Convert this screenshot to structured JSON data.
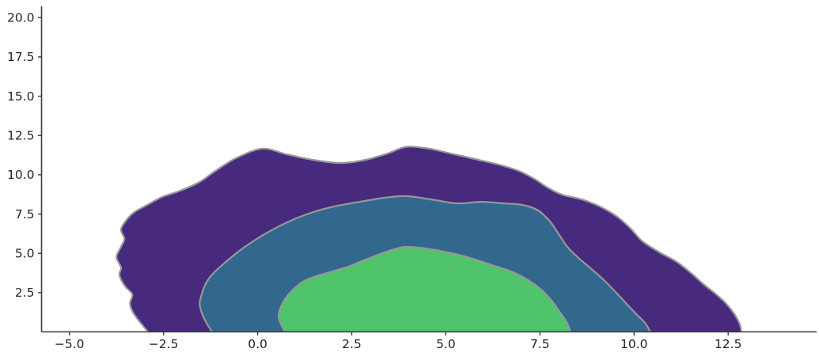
{
  "figure": {
    "background": "#ffffff",
    "spine_color": "#3c3c3c",
    "tick_color": "#3c3c3c",
    "tick_label_color": "#262626"
  },
  "chart_data": {
    "type": "contour",
    "subtype": "filled-kde-density",
    "title": "",
    "xlabel": "",
    "ylabel": "",
    "grid": false,
    "legend": null,
    "palette": "viridis",
    "xlim": [
      -5.74,
      14.85
    ],
    "ylim": [
      0,
      20.72
    ],
    "x_ticks": {
      "values": [
        -5.0,
        -2.5,
        0.0,
        2.5,
        5.0,
        7.5,
        10.0,
        12.5
      ],
      "labels": [
        "−5.0",
        "−2.5",
        "0.0",
        "2.5",
        "5.0",
        "7.5",
        "10.0",
        "12.5"
      ]
    },
    "y_ticks": {
      "values": [
        2.5,
        5.0,
        7.5,
        10.0,
        12.5,
        15.0,
        17.5,
        20.0
      ],
      "labels": [
        "2.5",
        "5.0",
        "7.5",
        "10.0",
        "12.5",
        "15.0",
        "17.5",
        "20.0"
      ]
    },
    "contour_edge_color": "#979797",
    "levels": [
      {
        "name": "outer-low-density",
        "fill": "#472a7d",
        "points": [
          [
            -2.91,
            0
          ],
          [
            -3.16,
            0.73
          ],
          [
            -3.33,
            1.33
          ],
          [
            -3.39,
            1.84
          ],
          [
            -3.33,
            2.39
          ],
          [
            -3.52,
            2.9
          ],
          [
            -3.67,
            3.6
          ],
          [
            -3.63,
            4.1
          ],
          [
            -3.75,
            4.76
          ],
          [
            -3.63,
            5.41
          ],
          [
            -3.54,
            5.92
          ],
          [
            -3.63,
            6.52
          ],
          [
            -3.48,
            7.13
          ],
          [
            -3.27,
            7.63
          ],
          [
            -2.93,
            8.08
          ],
          [
            -2.53,
            8.59
          ],
          [
            -2.05,
            8.99
          ],
          [
            -1.54,
            9.54
          ],
          [
            -1.12,
            10.25
          ],
          [
            -0.54,
            11.1
          ],
          [
            0.14,
            11.66
          ],
          [
            0.77,
            11.3
          ],
          [
            1.46,
            10.95
          ],
          [
            2.2,
            10.75
          ],
          [
            2.87,
            10.95
          ],
          [
            3.46,
            11.36
          ],
          [
            3.96,
            11.78
          ],
          [
            4.55,
            11.66
          ],
          [
            5.03,
            11.41
          ],
          [
            5.77,
            11.0
          ],
          [
            6.4,
            10.65
          ],
          [
            6.93,
            10.25
          ],
          [
            7.35,
            9.74
          ],
          [
            7.7,
            9.19
          ],
          [
            8.08,
            8.74
          ],
          [
            8.61,
            8.43
          ],
          [
            9.09,
            7.98
          ],
          [
            9.55,
            7.33
          ],
          [
            9.91,
            6.57
          ],
          [
            10.22,
            5.77
          ],
          [
            10.64,
            5.11
          ],
          [
            11.13,
            4.46
          ],
          [
            11.51,
            3.75
          ],
          [
            11.86,
            3.0
          ],
          [
            12.18,
            2.39
          ],
          [
            12.45,
            1.79
          ],
          [
            12.68,
            1.08
          ],
          [
            12.81,
            0.48
          ],
          [
            12.85,
            0
          ]
        ]
      },
      {
        "name": "middle-density",
        "fill": "#33688e",
        "points": [
          [
            -1.21,
            0
          ],
          [
            -1.36,
            0.58
          ],
          [
            -1.48,
            1.18
          ],
          [
            -1.54,
            1.79
          ],
          [
            -1.48,
            2.44
          ],
          [
            -1.36,
            3.15
          ],
          [
            -1.17,
            3.75
          ],
          [
            -0.89,
            4.36
          ],
          [
            -0.54,
            5.06
          ],
          [
            -0.12,
            5.77
          ],
          [
            0.37,
            6.47
          ],
          [
            0.87,
            7.07
          ],
          [
            1.42,
            7.58
          ],
          [
            2.03,
            7.98
          ],
          [
            2.72,
            8.28
          ],
          [
            3.35,
            8.53
          ],
          [
            3.94,
            8.64
          ],
          [
            4.61,
            8.43
          ],
          [
            5.29,
            8.18
          ],
          [
            5.94,
            8.28
          ],
          [
            6.5,
            8.18
          ],
          [
            7.03,
            8.08
          ],
          [
            7.45,
            7.73
          ],
          [
            7.77,
            7.02
          ],
          [
            8.0,
            6.22
          ],
          [
            8.23,
            5.41
          ],
          [
            8.5,
            4.76
          ],
          [
            8.82,
            4.1
          ],
          [
            9.13,
            3.45
          ],
          [
            9.45,
            2.69
          ],
          [
            9.76,
            1.89
          ],
          [
            10.04,
            1.18
          ],
          [
            10.29,
            0.58
          ],
          [
            10.43,
            0
          ]
        ]
      },
      {
        "name": "inner-high-density",
        "fill": "#4fc46b",
        "points": [
          [
            0.73,
            0
          ],
          [
            0.62,
            0.48
          ],
          [
            0.56,
            0.98
          ],
          [
            0.6,
            1.49
          ],
          [
            0.73,
            2.09
          ],
          [
            0.94,
            2.69
          ],
          [
            1.21,
            3.2
          ],
          [
            1.57,
            3.55
          ],
          [
            1.99,
            3.85
          ],
          [
            2.41,
            4.15
          ],
          [
            2.78,
            4.51
          ],
          [
            3.2,
            4.91
          ],
          [
            3.63,
            5.26
          ],
          [
            3.92,
            5.41
          ],
          [
            4.3,
            5.36
          ],
          [
            4.72,
            5.21
          ],
          [
            5.24,
            4.96
          ],
          [
            5.77,
            4.61
          ],
          [
            6.29,
            4.2
          ],
          [
            6.78,
            3.8
          ],
          [
            7.18,
            3.3
          ],
          [
            7.53,
            2.69
          ],
          [
            7.81,
            1.99
          ],
          [
            8.02,
            1.28
          ],
          [
            8.21,
            0.63
          ],
          [
            8.31,
            0
          ]
        ]
      }
    ]
  }
}
